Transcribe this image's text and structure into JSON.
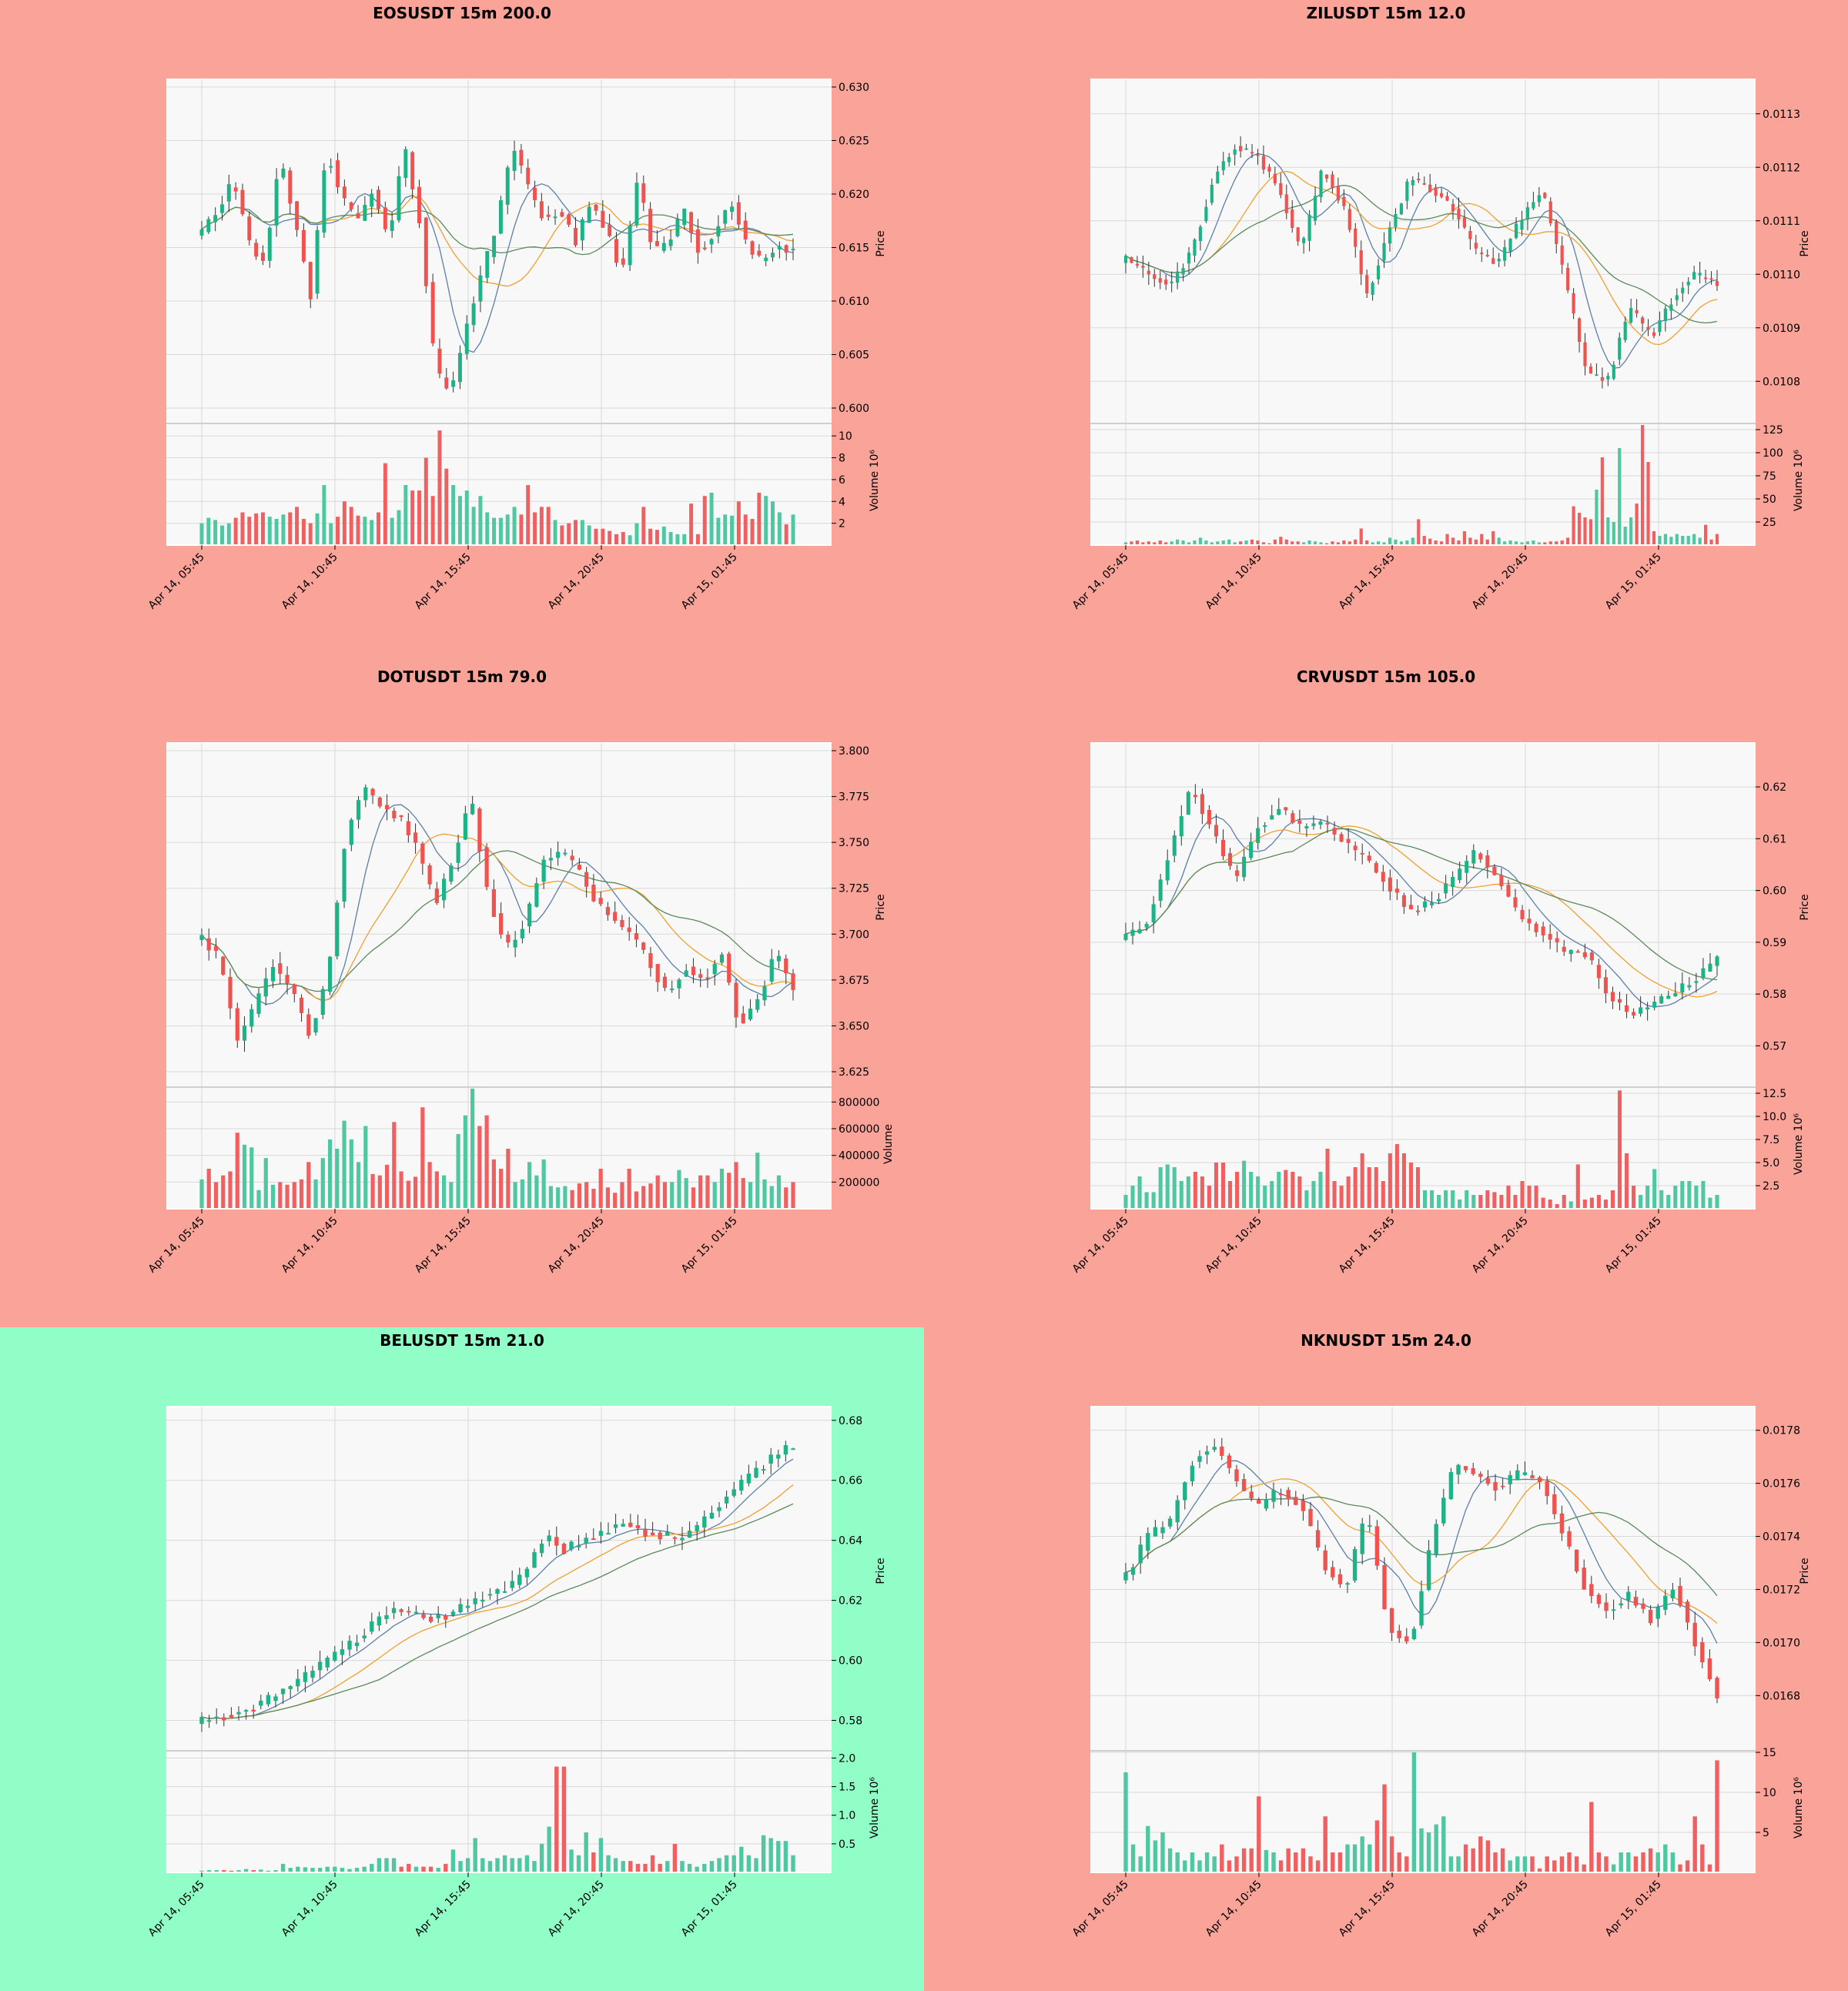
{
  "colors": {
    "page_bg": "#faa398",
    "alert_bg": "#91fec8",
    "plot_bg": "#f8f8f8",
    "grid": "#d9d9d9",
    "up": "#26a69a",
    "up_alt": "#1db387",
    "down": "#ef5350",
    "ma_fast": "#5b7fa8",
    "ma_mid": "#f0a030",
    "ma_slow": "#5a8a5a"
  },
  "chart_data": [
    {
      "type": "candlestick",
      "title": "EOSUSDT 15m 200.0",
      "background": "page_bg",
      "x_ticks": [
        "Apr 14, 05:45",
        "Apr 14, 10:45",
        "Apr 14, 15:45",
        "Apr 14, 20:45",
        "Apr 15, 01:45"
      ],
      "price": {
        "ylabel": "Price",
        "ylim": [
          0.6,
          0.63
        ],
        "ticks": [
          "0.600",
          "0.605",
          "0.610",
          "0.615",
          "0.620",
          "0.625",
          "0.630"
        ],
        "anchors": [
          0.6165,
          0.6185,
          0.6215,
          0.6155,
          0.6135,
          0.6235,
          0.6175,
          0.6105,
          0.6245,
          0.6195,
          0.6175,
          0.6205,
          0.6155,
          0.6245,
          0.6175,
          0.6035,
          0.6015,
          0.6075,
          0.6125,
          0.6175,
          0.6245,
          0.6205,
          0.6175,
          0.6185,
          0.6155,
          0.6195,
          0.6165,
          0.6125,
          0.6215,
          0.6145,
          0.6155,
          0.6185,
          0.6145,
          0.6165,
          0.6195,
          0.6155,
          0.6135,
          0.6155,
          0.6145
        ]
      },
      "volume": {
        "ylabel": "Volume  10^6",
        "ylim": [
          0,
          11
        ],
        "ticks": [
          "2",
          "4",
          "6",
          "8",
          "10"
        ],
        "values": [
          2.0,
          2.5,
          2.3,
          1.8,
          2.0,
          2.5,
          3.0,
          2.6,
          2.9,
          3.0,
          2.6,
          2.4,
          2.8,
          3.0,
          3.5,
          2.4,
          2.0,
          2.9,
          5.5,
          2.0,
          2.6,
          4.0,
          3.5,
          2.7,
          2.6,
          2.3,
          3.0,
          7.5,
          2.5,
          3.2,
          5.5,
          5.0,
          5.0,
          8.0,
          4.5,
          10.5,
          7.0,
          5.5,
          4.5,
          5.0,
          3.5,
          4.5,
          3.0,
          2.5,
          2.5,
          2.8,
          3.5,
          2.8,
          5.5,
          3.0,
          3.5,
          3.5,
          2.3,
          1.8,
          2.0,
          2.3,
          2.3,
          1.8,
          1.5,
          1.5,
          1.3,
          1.0,
          1.2,
          0.9,
          2.0,
          3.5,
          1.5,
          1.4,
          1.7,
          1.2,
          1.0,
          1.0,
          3.8,
          1.0,
          4.5,
          4.8,
          2.5,
          2.8,
          2.7,
          4.0,
          2.8,
          2.4,
          4.8,
          4.5,
          4.0,
          3.0,
          1.9,
          2.8
        ]
      }
    },
    {
      "type": "candlestick",
      "title": "ZILUSDT 15m 12.0",
      "background": "page_bg",
      "x_ticks": [
        "Apr 14, 05:45",
        "Apr 14, 10:45",
        "Apr 14, 15:45",
        "Apr 14, 20:45",
        "Apr 15, 01:45"
      ],
      "price": {
        "ylabel": "Price",
        "ylim": [
          0.01075,
          0.01135
        ],
        "ticks": [
          "0.0108",
          "0.0109",
          "0.0110",
          "0.0111",
          "0.0112",
          "0.0113"
        ],
        "anchors": [
          0.01103,
          0.011,
          0.01098,
          0.01104,
          0.01118,
          0.01124,
          0.01122,
          0.01116,
          0.01104,
          0.0112,
          0.01112,
          0.01096,
          0.01108,
          0.01118,
          0.01116,
          0.01112,
          0.01104,
          0.01102,
          0.0111,
          0.01116,
          0.011,
          0.01082,
          0.0108,
          0.01094,
          0.01088,
          0.01096,
          0.011,
          0.01098
        ]
      },
      "volume": {
        "ylabel": "Volume  10^6",
        "ylim": [
          0,
          130
        ],
        "ticks": [
          "25",
          "50",
          "75",
          "100",
          "125"
        ],
        "values": [
          3,
          4,
          5,
          3,
          4,
          3,
          5,
          3,
          4,
          6,
          5,
          3,
          5,
          8,
          5,
          3,
          4,
          5,
          6,
          3,
          4,
          5,
          6,
          5,
          3,
          2,
          6,
          9,
          6,
          4,
          4,
          3,
          5,
          4,
          3,
          2,
          4,
          3,
          5,
          4,
          6,
          18,
          5,
          3,
          4,
          3,
          8,
          6,
          4,
          5,
          8,
          28,
          10,
          7,
          5,
          4,
          12,
          8,
          5,
          15,
          8,
          6,
          12,
          6,
          15,
          8,
          4,
          5,
          4,
          3,
          4,
          5,
          3,
          3,
          4,
          4,
          5,
          8,
          42,
          35,
          30,
          28,
          60,
          95,
          30,
          25,
          105,
          20,
          30,
          45,
          130,
          90,
          15,
          10,
          12,
          9,
          12,
          10,
          10,
          12,
          8,
          22,
          6,
          12
        ]
      }
    },
    {
      "type": "candlestick",
      "title": "DOTUSDT 15m 79.0",
      "background": "page_bg",
      "x_ticks": [
        "Apr 14, 05:45",
        "Apr 14, 10:45",
        "Apr 14, 15:45",
        "Apr 14, 20:45",
        "Apr 15, 01:45"
      ],
      "price": {
        "ylabel": "Price",
        "ylim": [
          3.625,
          3.8
        ],
        "ticks": [
          "3.625",
          "3.650",
          "3.675",
          "3.700",
          "3.725",
          "3.750",
          "3.775",
          "3.800"
        ],
        "anchors": [
          3.698,
          3.686,
          3.642,
          3.661,
          3.684,
          3.669,
          3.646,
          3.676,
          3.752,
          3.78,
          3.77,
          3.764,
          3.748,
          3.716,
          3.74,
          3.775,
          3.72,
          3.692,
          3.705,
          3.74,
          3.745,
          3.735,
          3.718,
          3.708,
          3.7,
          3.684,
          3.667,
          3.682,
          3.675,
          3.69,
          3.65,
          3.663,
          3.69,
          3.672
        ]
      },
      "volume": {
        "ylabel": "Volume",
        "ylim": [
          0,
          900000
        ],
        "ticks": [
          "200000",
          "400000",
          "600000",
          "800000"
        ],
        "values": [
          220000,
          300000,
          200000,
          250000,
          280000,
          570000,
          480000,
          460000,
          140000,
          380000,
          180000,
          200000,
          180000,
          200000,
          220000,
          350000,
          220000,
          380000,
          520000,
          450000,
          660000,
          520000,
          350000,
          620000,
          260000,
          250000,
          330000,
          650000,
          280000,
          210000,
          240000,
          760000,
          350000,
          280000,
          250000,
          200000,
          560000,
          700000,
          900000,
          620000,
          700000,
          370000,
          300000,
          450000,
          200000,
          220000,
          350000,
          250000,
          370000,
          170000,
          160000,
          170000,
          140000,
          190000,
          200000,
          150000,
          300000,
          160000,
          120000,
          200000,
          300000,
          130000,
          170000,
          190000,
          250000,
          200000,
          200000,
          290000,
          230000,
          160000,
          250000,
          250000,
          200000,
          300000,
          270000,
          350000,
          230000,
          200000,
          420000,
          220000,
          170000,
          250000,
          160000,
          200000
        ]
      }
    },
    {
      "type": "candlestick",
      "title": "CRVUSDT 15m 105.0",
      "background": "page_bg",
      "x_ticks": [
        "Apr 14, 05:45",
        "Apr 14, 10:45",
        "Apr 14, 15:45",
        "Apr 14, 20:45",
        "Apr 15, 01:45"
      ],
      "price": {
        "ylabel": "Price",
        "ylim": [
          0.565,
          0.627
        ],
        "ticks": [
          "0.57",
          "0.58",
          "0.59",
          "0.60",
          "0.61",
          "0.62"
        ],
        "anchors": [
          0.591,
          0.594,
          0.608,
          0.62,
          0.611,
          0.602,
          0.612,
          0.616,
          0.612,
          0.613,
          0.609,
          0.606,
          0.601,
          0.596,
          0.598,
          0.602,
          0.608,
          0.602,
          0.595,
          0.592,
          0.588,
          0.588,
          0.58,
          0.576,
          0.578,
          0.58,
          0.583,
          0.587
        ]
      },
      "volume": {
        "ylabel": "Volume  10^6",
        "ylim": [
          0,
          13
        ],
        "ticks": [
          "2.5",
          "5.0",
          "7.5",
          "10.0",
          "12.5"
        ],
        "values": [
          1.5,
          2.5,
          3.5,
          1.8,
          1.8,
          4.5,
          4.8,
          4.5,
          3.0,
          3.5,
          4.0,
          3.5,
          2.5,
          5.0,
          5.0,
          3.0,
          4.0,
          5.2,
          4.0,
          3.5,
          2.5,
          3.0,
          4.0,
          4.2,
          4.0,
          3.5,
          2.0,
          3.0,
          4.0,
          6.5,
          3.0,
          2.5,
          3.5,
          4.5,
          6.0,
          4.5,
          4.5,
          3.0,
          6.0,
          7.0,
          6.0,
          5.0,
          4.5,
          2.0,
          2.0,
          1.5,
          2.0,
          2.0,
          1.0,
          2.0,
          1.5,
          1.5,
          2.0,
          1.8,
          1.5,
          2.5,
          1.5,
          3.0,
          2.5,
          2.5,
          1.2,
          1.0,
          0.5,
          1.5,
          0.8,
          4.8,
          1.0,
          1.2,
          1.5,
          1.0,
          2.0,
          12.8,
          6.0,
          2.5,
          1.5,
          2.5,
          4.3,
          2.0,
          1.5,
          2.5,
          3.0,
          3.0,
          2.5,
          3.0,
          1.2,
          1.5
        ]
      }
    },
    {
      "type": "candlestick",
      "title": "BELUSDT 15m 21.0",
      "background": "alert_bg",
      "x_ticks": [
        "Apr 14, 05:45",
        "Apr 14, 10:45",
        "Apr 14, 15:45",
        "Apr 14, 20:45",
        "Apr 15, 01:45"
      ],
      "price": {
        "ylabel": "Price",
        "ylim": [
          0.575,
          0.682
        ],
        "ticks": [
          "0.58",
          "0.60",
          "0.62",
          "0.64",
          "0.66",
          "0.68"
        ],
        "anchors": [
          0.58,
          0.581,
          0.583,
          0.585,
          0.589,
          0.593,
          0.597,
          0.602,
          0.606,
          0.612,
          0.617,
          0.616,
          0.614,
          0.615,
          0.619,
          0.622,
          0.624,
          0.63,
          0.642,
          0.637,
          0.64,
          0.643,
          0.646,
          0.643,
          0.642,
          0.64,
          0.645,
          0.652,
          0.657,
          0.663,
          0.668,
          0.672
        ]
      },
      "volume": {
        "ylabel": "Volume  10^6",
        "ylim": [
          0,
          2.1
        ],
        "ticks": [
          "0.5",
          "1.0",
          "1.5",
          "2.0"
        ],
        "values": [
          0.03,
          0.04,
          0.04,
          0.04,
          0.03,
          0.04,
          0.06,
          0.04,
          0.05,
          0.03,
          0.04,
          0.15,
          0.08,
          0.1,
          0.09,
          0.08,
          0.08,
          0.1,
          0.1,
          0.08,
          0.06,
          0.08,
          0.1,
          0.15,
          0.25,
          0.25,
          0.25,
          0.1,
          0.15,
          0.1,
          0.1,
          0.1,
          0.08,
          0.15,
          0.4,
          0.2,
          0.25,
          0.6,
          0.25,
          0.2,
          0.25,
          0.3,
          0.25,
          0.25,
          0.3,
          0.2,
          0.5,
          0.8,
          1.85,
          1.85,
          0.4,
          0.3,
          0.7,
          0.35,
          0.6,
          0.3,
          0.25,
          0.2,
          0.2,
          0.15,
          0.15,
          0.3,
          0.15,
          0.2,
          0.5,
          0.2,
          0.15,
          0.1,
          0.15,
          0.2,
          0.25,
          0.3,
          0.3,
          0.45,
          0.3,
          0.25,
          0.65,
          0.6,
          0.55,
          0.55,
          0.3
        ]
      }
    },
    {
      "type": "candlestick",
      "title": "NKNUSDT 15m 24.0",
      "background": "page_bg",
      "x_ticks": [
        "Apr 14, 05:45",
        "Apr 14, 10:45",
        "Apr 14, 15:45",
        "Apr 14, 20:45",
        "Apr 15, 01:45"
      ],
      "price": {
        "ylabel": "Price",
        "ylim": [
          0.01665,
          0.01786
        ],
        "ticks": [
          "0.0168",
          "0.0170",
          "0.0172",
          "0.0174",
          "0.0176",
          "0.0178"
        ],
        "anchors": [
          0.01725,
          0.0174,
          0.01745,
          0.01768,
          0.01775,
          0.01762,
          0.0175,
          0.01758,
          0.01752,
          0.0173,
          0.0172,
          0.0175,
          0.01705,
          0.017,
          0.0174,
          0.01768,
          0.01763,
          0.01758,
          0.01764,
          0.0176,
          0.0174,
          0.0172,
          0.01712,
          0.01718,
          0.01708,
          0.01722,
          0.017,
          0.0168
        ]
      },
      "volume": {
        "ylabel": "Volume  10^6",
        "ylim": [
          0,
          15
        ],
        "ticks": [
          "5",
          "10",
          "15"
        ],
        "values": [
          12.5,
          3.5,
          2.0,
          5.8,
          4.0,
          5.0,
          3.0,
          2.5,
          1.5,
          2.5,
          1.5,
          2.5,
          2.0,
          3.5,
          1.5,
          2.0,
          3.0,
          3.0,
          9.5,
          2.8,
          2.5,
          1.5,
          3.0,
          2.5,
          3.0,
          2.0,
          1.5,
          7.0,
          2.5,
          2.5,
          3.5,
          3.5,
          4.5,
          3.5,
          6.5,
          11.0,
          4.5,
          2.5,
          2.0,
          15.0,
          5.5,
          5.0,
          6.0,
          7.0,
          2.0,
          2.0,
          3.5,
          3.0,
          4.5,
          4.0,
          2.5,
          3.0,
          1.5,
          2.0,
          2.0,
          2.0,
          0.5,
          2.0,
          1.5,
          2.0,
          2.5,
          2.0,
          1.0,
          8.8,
          2.5,
          2.0,
          1.0,
          2.5,
          2.5,
          2.0,
          2.5,
          3.0,
          2.5,
          3.5,
          2.5,
          1.0,
          1.5,
          7.0,
          3.5,
          1.0,
          14.0
        ]
      }
    }
  ]
}
